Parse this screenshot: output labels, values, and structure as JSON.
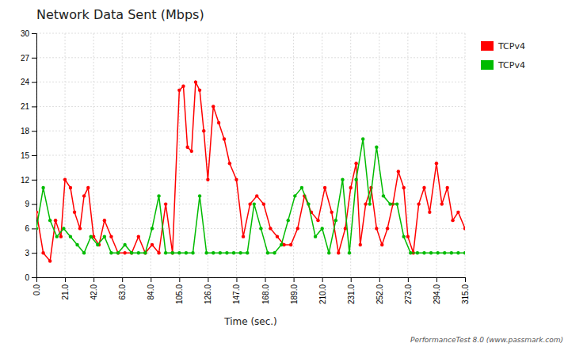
{
  "chart_data": {
    "type": "line",
    "title": "Network Data Sent (Mbps)",
    "x_label": "Time (sec.)",
    "annotations": [
      {
        "text": "PerformanceTest 8.0 (www.passmark.com)"
      }
    ],
    "xlim": [
      0.0,
      315.0
    ],
    "xticks": [
      {
        "value": 0.0,
        "label": "0.0"
      },
      {
        "value": 21.0,
        "label": "21.0"
      },
      {
        "value": 42.0,
        "label": "42.0"
      },
      {
        "value": 63.0,
        "label": "63.0"
      },
      {
        "value": 84.0,
        "label": "84.0"
      },
      {
        "value": 105.0,
        "label": "105.0"
      },
      {
        "value": 126.0,
        "label": "126.0"
      },
      {
        "value": 147.0,
        "label": "147.0"
      },
      {
        "value": 168.0,
        "label": "168.0"
      },
      {
        "value": 189.0,
        "label": "189.0"
      },
      {
        "value": 210.0,
        "label": "210.0"
      },
      {
        "value": 231.0,
        "label": "231.0"
      },
      {
        "value": 252.0,
        "label": "252.0"
      },
      {
        "value": 273.0,
        "label": "273.0"
      },
      {
        "value": 294.0,
        "label": "294.0"
      },
      {
        "value": 315.0,
        "label": "315.0"
      }
    ],
    "ylim": [
      0,
      30
    ],
    "yticks": [
      0,
      3,
      6,
      9,
      12,
      15,
      18,
      21,
      24,
      27,
      30
    ],
    "grid": true,
    "legend": "right",
    "series": [
      {
        "name": "TCPv4",
        "color": "#ff0000",
        "marker": "circle",
        "x": [
          0,
          5,
          10,
          14,
          18,
          21,
          25,
          28,
          32,
          35,
          38,
          42,
          46,
          50,
          55,
          60,
          65,
          70,
          75,
          80,
          85,
          90,
          95,
          100,
          105,
          108,
          111,
          114,
          117,
          120,
          123,
          126,
          130,
          134,
          138,
          142,
          147,
          152,
          157,
          162,
          167,
          172,
          177,
          182,
          187,
          192,
          197,
          202,
          207,
          212,
          217,
          222,
          227,
          231,
          235,
          238,
          242,
          246,
          250,
          254,
          258,
          262,
          266,
          270,
          273,
          277,
          281,
          285,
          289,
          294,
          298,
          302,
          306,
          310,
          315
        ],
        "values": [
          8,
          3,
          2,
          7,
          5,
          12,
          11,
          8,
          6,
          10,
          11,
          5,
          4,
          7,
          5,
          3,
          3,
          3,
          5,
          3,
          4,
          3,
          9,
          3,
          23,
          23.5,
          16,
          15.5,
          24,
          23,
          18,
          12,
          21,
          19,
          17,
          14,
          12,
          5,
          9,
          10,
          9,
          6,
          5,
          4,
          4,
          6,
          10,
          8,
          7,
          11,
          8,
          3,
          6,
          11,
          14,
          4,
          9,
          11,
          6,
          4,
          6,
          9,
          13,
          11,
          5,
          3,
          9,
          11,
          8,
          14,
          9,
          11,
          7,
          8,
          6
        ]
      },
      {
        "name": "TCPv4",
        "color": "#00bb00",
        "marker": "circle",
        "x": [
          0,
          5,
          10,
          15,
          20,
          25,
          30,
          35,
          40,
          45,
          50,
          55,
          60,
          65,
          70,
          75,
          80,
          85,
          90,
          95,
          100,
          105,
          110,
          115,
          120,
          125,
          130,
          135,
          140,
          145,
          150,
          155,
          160,
          165,
          170,
          175,
          180,
          185,
          190,
          195,
          200,
          205,
          210,
          215,
          220,
          225,
          230,
          235,
          240,
          245,
          250,
          255,
          260,
          265,
          270,
          275,
          280,
          285,
          290,
          295,
          300,
          305,
          310,
          315
        ],
        "values": [
          6,
          11,
          7,
          5,
          6,
          5,
          4,
          3,
          5,
          4,
          5,
          3,
          3,
          4,
          3,
          3,
          3,
          6,
          10,
          3,
          3,
          3,
          3,
          3,
          10,
          3,
          3,
          3,
          3,
          3,
          3,
          3,
          9,
          6,
          3,
          3,
          4,
          7,
          10,
          11,
          9,
          5,
          6,
          3,
          7,
          12,
          3,
          12,
          17,
          9,
          16,
          10,
          9,
          9,
          5,
          3,
          3,
          3,
          3,
          3,
          3,
          3,
          3,
          3
        ]
      }
    ]
  }
}
